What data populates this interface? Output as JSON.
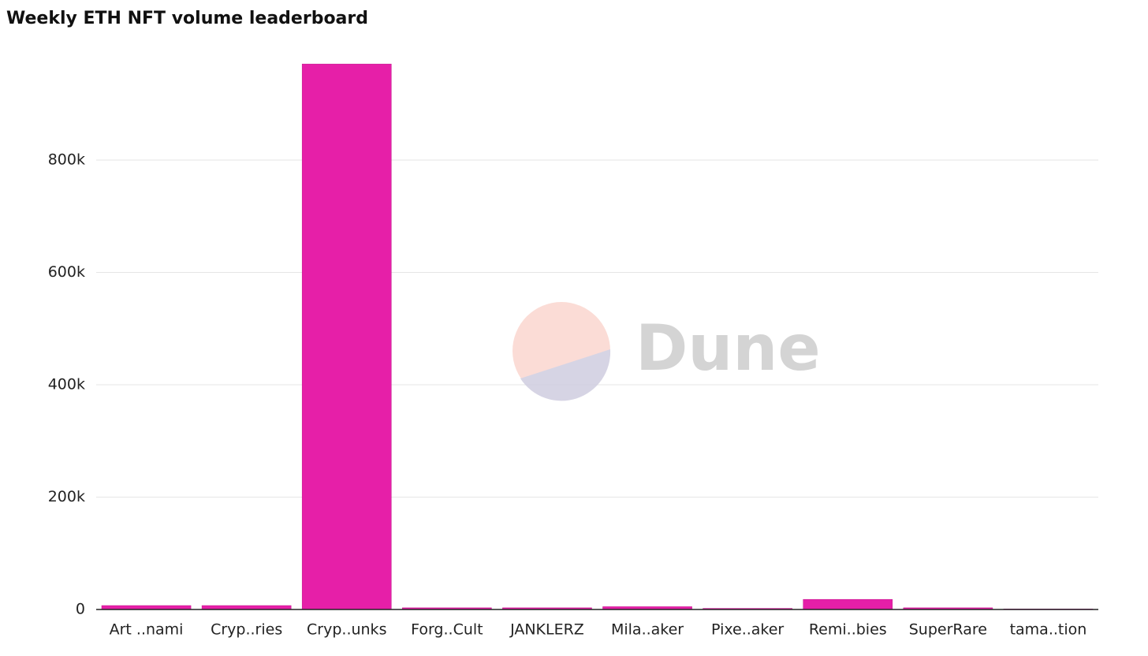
{
  "chart_data": {
    "type": "bar",
    "title": "Weekly ETH NFT volume leaderboard",
    "watermark": "Dune",
    "categories": [
      "Art ..nami",
      "Cryp..ries",
      "Cryp..unks",
      "Forg..Cult",
      "JANKLERZ",
      "Mila..aker",
      "Pixe..aker",
      "Remi..bies",
      "SuperRare",
      "tama..tion"
    ],
    "values": [
      7000,
      7000,
      971000,
      3000,
      3000,
      5000,
      2000,
      18000,
      3000,
      1000
    ],
    "color": "#e61fa8",
    "ylim": [
      0,
      1000000
    ],
    "yticks": [
      0,
      {
        "value": 200000,
        "label": "200k"
      },
      {
        "value": 400000,
        "label": "400k"
      },
      {
        "value": 600000,
        "label": "600k"
      },
      {
        "value": 800000,
        "label": "800k"
      }
    ],
    "grid": true
  }
}
